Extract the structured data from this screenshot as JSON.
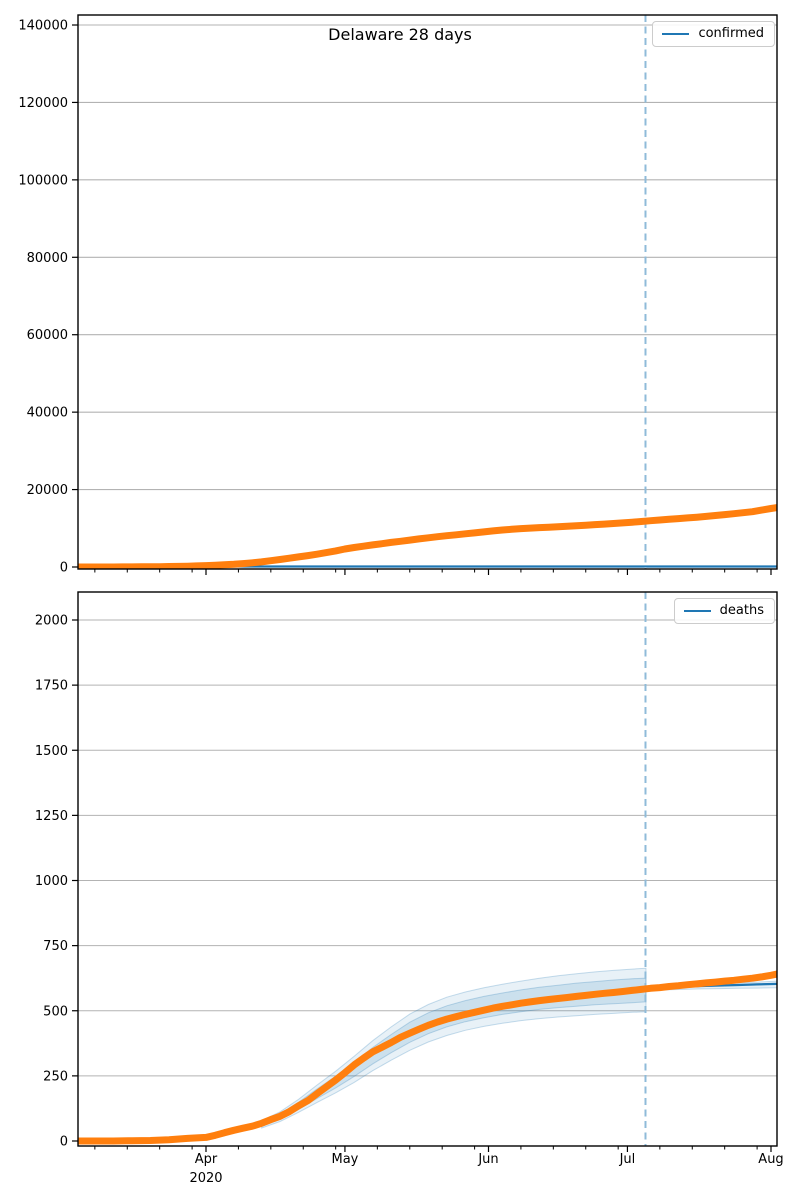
{
  "title": "Delaware 28 days",
  "colors": {
    "actual": "#ff7f0e",
    "prediction": "#1f77b4",
    "cutoff_dash": "#8fbbd9",
    "grid": "#b3b3b3",
    "spine": "#000000",
    "band_outer_fill": "rgba(31,119,180,0.10)",
    "band_inner_fill": "rgba(31,119,180,0.14)",
    "band_edge": "rgba(31,119,180,0.25)",
    "legend_border": "#cccccc",
    "text": "#000000"
  },
  "x_axis": {
    "unit": "days since 2020-03-04",
    "domain_days": [
      0.4,
      151.3
    ],
    "major_ticks": [
      {
        "day": 28,
        "label": "Apr",
        "sublabel": "2020"
      },
      {
        "day": 58,
        "label": "May"
      },
      {
        "day": 89,
        "label": "Jun"
      },
      {
        "day": 119,
        "label": "Jul"
      },
      {
        "day": 150,
        "label": "Aug"
      }
    ],
    "minor_tick_days": [
      4,
      11,
      18,
      25,
      35,
      42,
      49,
      56,
      65,
      72,
      79,
      86,
      96,
      103,
      110,
      117,
      126,
      133,
      140,
      147
    ],
    "cutoff_day": 122.9
  },
  "chart_data": [
    {
      "type": "line",
      "title": "Delaware 28 days",
      "legend": "confirmed",
      "legend_position": "upper right",
      "grid": "horizontal",
      "xlabel": "",
      "ylabel": "",
      "ylim": [
        0,
        142000
      ],
      "yticks": [
        0,
        20000,
        40000,
        60000,
        80000,
        100000,
        120000,
        140000
      ],
      "series": [
        {
          "name": "confirmed-prediction",
          "role": "prediction",
          "color": "#1f77b4",
          "points": [
            [
              0.4,
              140
            ],
            [
              151.3,
              140
            ]
          ]
        },
        {
          "name": "confirmed-actual",
          "role": "actual",
          "color": "#ff7f0e",
          "points": [
            [
              0,
              2
            ],
            [
              2,
              4
            ],
            [
              4,
              6
            ],
            [
              6,
              8
            ],
            [
              8,
              11
            ],
            [
              10,
              16
            ],
            [
              12,
              26
            ],
            [
              14,
              39
            ],
            [
              16,
              56
            ],
            [
              18,
              87
            ],
            [
              20,
              119
            ],
            [
              22,
              162
            ],
            [
              24,
              214
            ],
            [
              26,
              280
            ],
            [
              28,
              368
            ],
            [
              30,
              450
            ],
            [
              32,
              560
            ],
            [
              34,
              700
            ],
            [
              36,
              880
            ],
            [
              38,
              1080
            ],
            [
              40,
              1330
            ],
            [
              42,
              1625
            ],
            [
              44,
              1930
            ],
            [
              46,
              2280
            ],
            [
              48,
              2620
            ],
            [
              50,
              2940
            ],
            [
              52,
              3310
            ],
            [
              54,
              3710
            ],
            [
              56,
              4160
            ],
            [
              58,
              4660
            ],
            [
              60,
              5040
            ],
            [
              62,
              5370
            ],
            [
              64,
              5700
            ],
            [
              66,
              6030
            ],
            [
              68,
              6350
            ],
            [
              70,
              6650
            ],
            [
              72,
              6950
            ],
            [
              74,
              7250
            ],
            [
              76,
              7550
            ],
            [
              78,
              7830
            ],
            [
              80,
              8090
            ],
            [
              82,
              8330
            ],
            [
              84,
              8570
            ],
            [
              86,
              8820
            ],
            [
              88,
              9070
            ],
            [
              90,
              9320
            ],
            [
              92,
              9560
            ],
            [
              94,
              9750
            ],
            [
              96,
              9920
            ],
            [
              98,
              10060
            ],
            [
              100,
              10180
            ],
            [
              102,
              10290
            ],
            [
              104,
              10410
            ],
            [
              106,
              10530
            ],
            [
              108,
              10660
            ],
            [
              110,
              10790
            ],
            [
              112,
              10940
            ],
            [
              114,
              11090
            ],
            [
              116,
              11240
            ],
            [
              118,
              11400
            ],
            [
              120,
              11570
            ],
            [
              122,
              11760
            ],
            [
              124,
              11960
            ],
            [
              126,
              12150
            ],
            [
              128,
              12330
            ],
            [
              130,
              12500
            ],
            [
              132,
              12680
            ],
            [
              134,
              12870
            ],
            [
              136,
              13080
            ],
            [
              138,
              13300
            ],
            [
              140,
              13530
            ],
            [
              142,
              13770
            ],
            [
              144,
              14020
            ],
            [
              146,
              14290
            ],
            [
              148,
              14700
            ],
            [
              150,
              15100
            ],
            [
              151.3,
              15350
            ]
          ]
        }
      ]
    },
    {
      "type": "line",
      "title": "",
      "legend": "deaths",
      "legend_position": "upper right",
      "grid": "horizontal",
      "xlabel": "",
      "ylabel": "",
      "ylim": [
        0,
        2100
      ],
      "yticks": [
        0,
        250,
        500,
        750,
        1000,
        1250,
        1500,
        1750,
        2000
      ],
      "bands": [
        {
          "name": "fit-ensemble-outer",
          "days": [
            40,
            44,
            48,
            52,
            56,
            60,
            64,
            68,
            72,
            76,
            80,
            84,
            88,
            92,
            96,
            100,
            104,
            108,
            112,
            116,
            120,
            123
          ],
          "lower": [
            50,
            75,
            110,
            148,
            185,
            225,
            270,
            310,
            348,
            380,
            405,
            425,
            440,
            452,
            462,
            470,
            476,
            481,
            486,
            490,
            494,
            496
          ],
          "upper": [
            78,
            112,
            160,
            215,
            268,
            325,
            385,
            438,
            487,
            524,
            552,
            572,
            588,
            602,
            614,
            625,
            634,
            642,
            649,
            655,
            660,
            663
          ]
        },
        {
          "name": "fit-ensemble-inner",
          "days": [
            40,
            44,
            48,
            52,
            56,
            60,
            64,
            68,
            72,
            76,
            80,
            84,
            88,
            92,
            96,
            100,
            104,
            108,
            112,
            116,
            120,
            123
          ],
          "lower": [
            56,
            83,
            121,
            163,
            204,
            248,
            296,
            339,
            379,
            412,
            438,
            458,
            473,
            486,
            496,
            505,
            512,
            517,
            523,
            527,
            531,
            534
          ],
          "upper": [
            72,
            104,
            149,
            200,
            249,
            303,
            359,
            409,
            456,
            492,
            519,
            539,
            555,
            568,
            580,
            590,
            598,
            606,
            612,
            618,
            623,
            625
          ]
        },
        {
          "name": "forecast-band",
          "days": [
            123,
            127,
            131,
            135,
            139,
            143,
            147,
            151.3
          ],
          "lower": [
            577,
            580,
            582,
            584,
            585,
            586,
            587,
            588
          ],
          "upper": [
            589,
            594,
            598,
            601,
            604,
            607,
            610,
            614
          ]
        }
      ],
      "series": [
        {
          "name": "deaths-prediction",
          "role": "prediction",
          "color": "#1f77b4",
          "points": [
            [
              119,
              575
            ],
            [
              123,
              583
            ],
            [
              127,
              588
            ],
            [
              131,
              592
            ],
            [
              135,
              595
            ],
            [
              139,
              597
            ],
            [
              143,
              599
            ],
            [
              147,
              601
            ],
            [
              151.3,
              603
            ]
          ]
        },
        {
          "name": "deaths-actual",
          "role": "actual",
          "color": "#ff7f0e",
          "points": [
            [
              0,
              0
            ],
            [
              4,
              0
            ],
            [
              8,
              0
            ],
            [
              12,
              1
            ],
            [
              16,
              2
            ],
            [
              20,
              5
            ],
            [
              24,
              10
            ],
            [
              28,
              14
            ],
            [
              30,
              22
            ],
            [
              32,
              32
            ],
            [
              34,
              41
            ],
            [
              36,
              49
            ],
            [
              38,
              57
            ],
            [
              40,
              68
            ],
            [
              42,
              82
            ],
            [
              44,
              95
            ],
            [
              46,
              113
            ],
            [
              48,
              135
            ],
            [
              50,
              155
            ],
            [
              52,
              182
            ],
            [
              54,
              208
            ],
            [
              56,
              234
            ],
            [
              58,
              262
            ],
            [
              60,
              292
            ],
            [
              62,
              318
            ],
            [
              64,
              342
            ],
            [
              66,
              360
            ],
            [
              68,
              378
            ],
            [
              70,
              398
            ],
            [
              72,
              414
            ],
            [
              74,
              429
            ],
            [
              76,
              444
            ],
            [
              78,
              457
            ],
            [
              80,
              468
            ],
            [
              82,
              477
            ],
            [
              84,
              486
            ],
            [
              86,
              494
            ],
            [
              88,
              502
            ],
            [
              90,
              510
            ],
            [
              92,
              517
            ],
            [
              94,
              523
            ],
            [
              96,
              529
            ],
            [
              98,
              534
            ],
            [
              100,
              539
            ],
            [
              102,
              543
            ],
            [
              104,
              547
            ],
            [
              106,
              551
            ],
            [
              108,
              555
            ],
            [
              110,
              559
            ],
            [
              112,
              563
            ],
            [
              114,
              567
            ],
            [
              116,
              570
            ],
            [
              118,
              574
            ],
            [
              120,
              578
            ],
            [
              122,
              582
            ],
            [
              124,
              586
            ],
            [
              126,
              589
            ],
            [
              128,
              593
            ],
            [
              130,
              596
            ],
            [
              132,
              600
            ],
            [
              134,
              603
            ],
            [
              136,
              607
            ],
            [
              138,
              610
            ],
            [
              140,
              614
            ],
            [
              142,
              617
            ],
            [
              144,
              621
            ],
            [
              146,
              625
            ],
            [
              148,
              630
            ],
            [
              150,
              636
            ],
            [
              151.3,
              641
            ]
          ]
        }
      ]
    }
  ]
}
